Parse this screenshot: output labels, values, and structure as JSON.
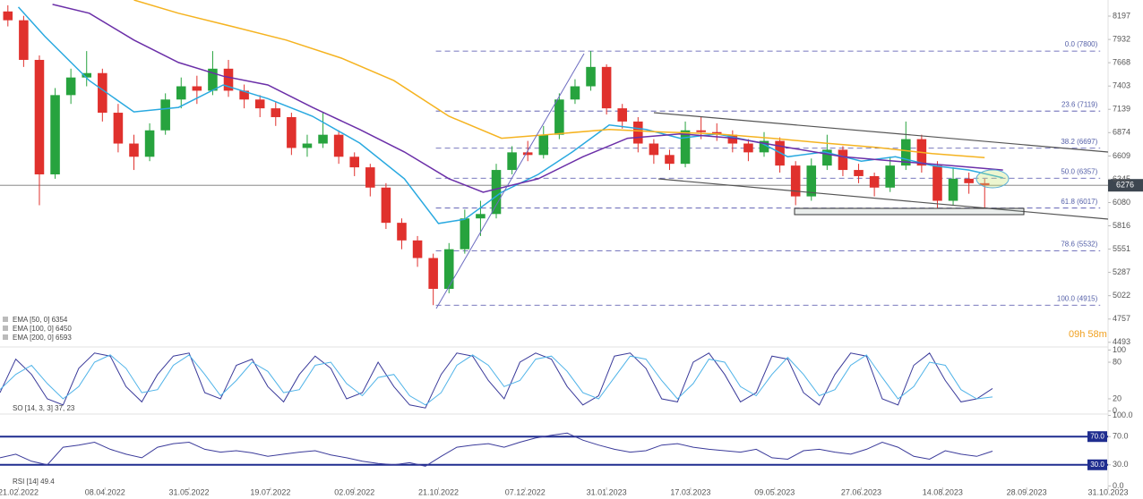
{
  "chart_data": [
    {
      "type": "candlestick",
      "x": [
        3,
        9,
        15,
        21,
        27,
        33,
        39,
        45,
        51,
        57,
        63,
        69,
        75,
        81,
        87,
        93,
        99,
        105,
        111,
        117,
        123,
        129,
        135,
        141,
        147,
        153,
        159,
        165,
        171,
        177,
        183,
        189,
        195,
        201,
        207,
        213,
        219,
        225,
        231,
        237,
        243,
        249,
        255,
        261,
        267,
        273,
        279,
        285,
        291,
        297,
        303,
        309,
        315,
        321,
        327,
        333,
        339,
        345,
        351,
        357,
        363,
        369,
        375
      ],
      "open": [
        8250,
        8150,
        7700,
        6400,
        7300,
        7500,
        7550,
        7100,
        6750,
        6600,
        6900,
        7250,
        7400,
        7350,
        7600,
        7350,
        7250,
        7150,
        7050,
        6700,
        6750,
        6850,
        6600,
        6480,
        6250,
        5850,
        5650,
        5450,
        5100,
        5550,
        5900,
        5950,
        6450,
        6650,
        6620,
        6850,
        7250,
        7400,
        7620,
        7150,
        7000,
        6750,
        6620,
        6520,
        6900,
        6880,
        6850,
        6750,
        6650,
        6780,
        6500,
        6150,
        6500,
        6680,
        6450,
        6380,
        6250,
        6500,
        6800,
        6500,
        6100,
        6350,
        6300
      ],
      "high": [
        8320,
        8200,
        7750,
        7380,
        7600,
        7800,
        7600,
        7200,
        6850,
        6980,
        7320,
        7500,
        7520,
        7800,
        7700,
        7420,
        7300,
        7220,
        7100,
        6850,
        7100,
        6900,
        6650,
        6520,
        6300,
        5900,
        5700,
        5500,
        5620,
        6000,
        6100,
        6520,
        6720,
        6780,
        6950,
        7320,
        7480,
        7800,
        7650,
        7200,
        7050,
        6800,
        6680,
        7000,
        7050,
        6980,
        6900,
        6800,
        6880,
        6820,
        6550,
        6580,
        6850,
        6720,
        6520,
        6420,
        6600,
        7000,
        6850,
        6550,
        6480,
        6420,
        6350
      ],
      "low": [
        8080,
        7620,
        6050,
        6350,
        7200,
        7400,
        7000,
        6650,
        6450,
        6550,
        6850,
        7150,
        7200,
        7300,
        7280,
        7150,
        7050,
        6950,
        6620,
        6600,
        6700,
        6520,
        6380,
        6150,
        5780,
        5550,
        5350,
        4915,
        5050,
        5500,
        5700,
        5900,
        6400,
        6550,
        6580,
        6800,
        7200,
        7350,
        7080,
        6920,
        6650,
        6520,
        6450,
        6480,
        6800,
        6780,
        6650,
        6550,
        6600,
        6420,
        6050,
        6100,
        6450,
        6380,
        6300,
        6150,
        6200,
        6450,
        6420,
        6020,
        6050,
        6180,
        6020
      ],
      "close": [
        8150,
        7700,
        6400,
        7300,
        7500,
        7550,
        7100,
        6750,
        6600,
        6900,
        7250,
        7400,
        7350,
        7600,
        7350,
        7250,
        7150,
        7050,
        6700,
        6750,
        6850,
        6600,
        6480,
        6250,
        5850,
        5650,
        5450,
        5100,
        5550,
        5900,
        5950,
        6450,
        6650,
        6620,
        6850,
        7250,
        7400,
        7620,
        7150,
        7000,
        6750,
        6620,
        6520,
        6900,
        6880,
        6850,
        6750,
        6650,
        6780,
        6500,
        6150,
        6500,
        6680,
        6450,
        6380,
        6250,
        6500,
        6800,
        6500,
        6100,
        6350,
        6300,
        6276
      ],
      "color_up": "#27a33e",
      "color_down": "#e0312d",
      "series": [
        {
          "name": "EMA [50, 0] 6354",
          "color": "#29a9e0",
          "x": [
            7,
            17,
            34,
            51,
            68,
            85,
            102,
            119,
            137,
            154,
            167,
            177,
            191,
            205,
            218,
            232,
            246,
            259,
            273,
            290,
            300,
            314,
            328,
            341,
            355,
            369,
            382
          ],
          "values": [
            8300,
            7970,
            7465,
            7110,
            7160,
            7415,
            7260,
            7060,
            6755,
            6350,
            5842,
            5890,
            6197,
            6400,
            6655,
            6960,
            6910,
            6810,
            6860,
            6755,
            6600,
            6655,
            6550,
            6600,
            6500,
            6450,
            6360
          ]
        },
        {
          "name": "EMA [100, 0] 6450",
          "color": "#6b2fa8",
          "x": [
            20,
            34,
            51,
            68,
            85,
            102,
            119,
            137,
            154,
            171,
            184,
            205,
            222,
            239,
            259,
            280,
            300,
            321,
            341,
            362,
            382
          ],
          "values": [
            8330,
            8230,
            7925,
            7670,
            7515,
            7415,
            7160,
            6910,
            6655,
            6350,
            6197,
            6350,
            6600,
            6810,
            6860,
            6810,
            6705,
            6600,
            6550,
            6500,
            6450
          ]
        },
        {
          "name": "EMA [200, 0] 6593",
          "color": "#f5b320",
          "x": [
            51,
            68,
            89,
            109,
            130,
            150,
            171,
            191,
            212,
            232,
            253,
            273,
            294,
            314,
            334,
            355,
            375
          ],
          "values": [
            8380,
            8230,
            8075,
            7925,
            7720,
            7465,
            7060,
            6810,
            6860,
            6910,
            6880,
            6860,
            6810,
            6755,
            6705,
            6635,
            6590
          ]
        }
      ],
      "fib_levels": [
        {
          "value": 7800,
          "label": "0.0 (7800)"
        },
        {
          "value": 7119,
          "label": "23.6 (7119)"
        },
        {
          "value": 6697,
          "label": "38.2 (6697)"
        },
        {
          "value": 6357,
          "label": "50.0 (6357)"
        },
        {
          "value": 6017,
          "label": "61.8 (6017)"
        },
        {
          "value": 5532,
          "label": "78.6 (5532)"
        },
        {
          "value": 4915,
          "label": "100.0 (4915)"
        }
      ],
      "last_price": 6276,
      "countdown": "09h 58m",
      "xlim": [
        0,
        422
      ],
      "ylim": [
        4440,
        8380
      ],
      "yticks": [
        8197,
        7932,
        7668,
        7403,
        7139,
        6874,
        6609,
        6345,
        6080,
        5816,
        5551,
        5287,
        5022,
        4757,
        4493
      ],
      "xticks": [
        {
          "value": 7,
          "label": "21.02.2022"
        },
        {
          "value": 40,
          "label": "08.04.2022"
        },
        {
          "value": 72,
          "label": "31.05.2022"
        },
        {
          "value": 103,
          "label": "19.07.2022"
        },
        {
          "value": 135,
          "label": "02.09.2022"
        },
        {
          "value": 167,
          "label": "21.10.2022"
        },
        {
          "value": 200,
          "label": "07.12.2022"
        },
        {
          "value": 231,
          "label": "31.01.2023"
        },
        {
          "value": 263,
          "label": "17.03.2023"
        },
        {
          "value": 295,
          "label": "09.05.2023"
        },
        {
          "value": 328,
          "label": "27.06.2023"
        },
        {
          "value": 359,
          "label": "14.08.2023"
        },
        {
          "value": 391,
          "label": "28.09.2023"
        },
        {
          "value": 422,
          "label": "31.10.2023"
        }
      ]
    },
    {
      "type": "line",
      "label": "SO [14, 3, 3] 37, 23",
      "x": [
        0,
        6,
        12,
        18,
        24,
        30,
        36,
        42,
        48,
        54,
        60,
        66,
        72,
        78,
        84,
        90,
        96,
        102,
        108,
        114,
        120,
        126,
        132,
        138,
        144,
        150,
        156,
        162,
        168,
        174,
        180,
        186,
        192,
        198,
        204,
        210,
        216,
        222,
        228,
        234,
        240,
        246,
        252,
        258,
        264,
        270,
        276,
        282,
        288,
        294,
        300,
        306,
        312,
        318,
        324,
        330,
        336,
        342,
        348,
        354,
        360,
        366,
        372,
        378
      ],
      "series": [
        {
          "color": "#3a3a9a",
          "values": [
            30,
            85,
            60,
            20,
            10,
            70,
            95,
            90,
            40,
            15,
            60,
            90,
            95,
            30,
            20,
            75,
            85,
            40,
            15,
            60,
            90,
            70,
            20,
            30,
            80,
            40,
            10,
            5,
            60,
            95,
            90,
            50,
            20,
            80,
            95,
            85,
            40,
            10,
            25,
            90,
            95,
            70,
            20,
            15,
            80,
            95,
            60,
            15,
            30,
            90,
            85,
            30,
            10,
            60,
            95,
            90,
            20,
            10,
            75,
            95,
            50,
            15,
            20,
            37
          ]
        },
        {
          "color": "#4fb3e8",
          "values": [
            35,
            60,
            75,
            45,
            20,
            40,
            80,
            92,
            70,
            30,
            35,
            75,
            92,
            60,
            25,
            50,
            80,
            65,
            30,
            35,
            75,
            80,
            45,
            25,
            55,
            60,
            25,
            10,
            30,
            75,
            92,
            75,
            40,
            50,
            85,
            90,
            65,
            30,
            20,
            55,
            90,
            85,
            50,
            20,
            45,
            85,
            80,
            40,
            25,
            60,
            88,
            60,
            25,
            35,
            75,
            92,
            55,
            20,
            40,
            80,
            75,
            35,
            20,
            23
          ]
        }
      ],
      "ylim": [
        -5,
        105
      ],
      "yticks": [
        100,
        80,
        20,
        0
      ]
    },
    {
      "type": "line",
      "label": "RSI [14] 49.4",
      "x": [
        0,
        6,
        12,
        18,
        24,
        30,
        36,
        42,
        48,
        54,
        60,
        66,
        72,
        78,
        84,
        90,
        96,
        102,
        108,
        114,
        120,
        126,
        132,
        138,
        144,
        150,
        156,
        162,
        168,
        174,
        180,
        186,
        192,
        198,
        204,
        210,
        216,
        222,
        228,
        234,
        240,
        246,
        252,
        258,
        264,
        270,
        276,
        282,
        288,
        294,
        300,
        306,
        312,
        318,
        324,
        330,
        336,
        342,
        348,
        354,
        360,
        366,
        372,
        378
      ],
      "series": [
        {
          "color": "#3a3a9a",
          "values": [
            40,
            45,
            35,
            30,
            55,
            58,
            62,
            52,
            45,
            40,
            55,
            60,
            62,
            52,
            48,
            50,
            47,
            42,
            45,
            48,
            50,
            44,
            40,
            35,
            32,
            30,
            33,
            28,
            42,
            55,
            58,
            60,
            55,
            62,
            68,
            72,
            75,
            65,
            58,
            52,
            48,
            50,
            58,
            60,
            55,
            52,
            50,
            48,
            52,
            40,
            38,
            50,
            52,
            48,
            45,
            52,
            62,
            55,
            42,
            38,
            50,
            45,
            42,
            49.4
          ]
        }
      ],
      "levels": [
        {
          "value": 70,
          "label": "70.0"
        },
        {
          "value": 30,
          "label": "30.0"
        }
      ],
      "level_color": "#1f2d8f",
      "ylim": [
        -2,
        102
      ],
      "yticks": [
        {
          "value": 100,
          "label": "100.0"
        },
        {
          "value": 70,
          "label": "70.0"
        },
        {
          "value": 30,
          "label": "30.0"
        },
        {
          "value": 0,
          "label": "0.0"
        }
      ]
    }
  ]
}
